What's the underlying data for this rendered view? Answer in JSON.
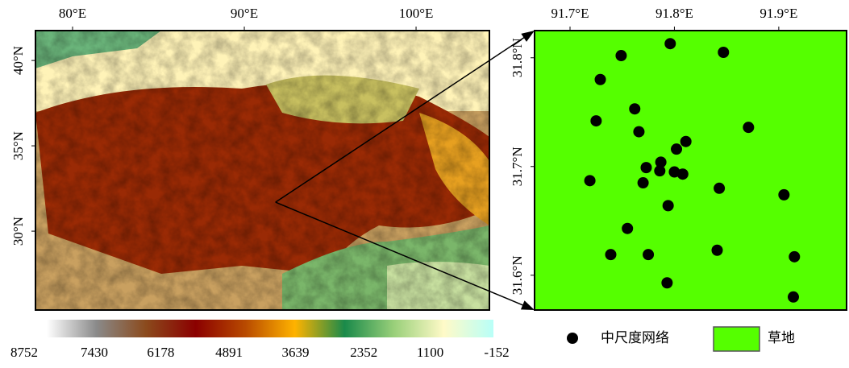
{
  "left_map": {
    "lon_range": [
      77.84,
      104.27
    ],
    "lat_range": [
      25.38,
      41.75
    ],
    "lon_ticks": [
      {
        "value": 80,
        "label": "80°E"
      },
      {
        "value": 90,
        "label": "90°E"
      },
      {
        "value": 100,
        "label": "100°E"
      }
    ],
    "lat_ticks": [
      {
        "value": 40,
        "label": "40°N"
      },
      {
        "value": 35,
        "label": "35°N"
      },
      {
        "value": 30,
        "label": "30°N"
      }
    ]
  },
  "colorbar": {
    "ticks": [
      8752,
      7430,
      6178,
      4891,
      3639,
      2352,
      1100,
      -152
    ],
    "colors": [
      "#ffffff",
      "#8a8a8a",
      "#8b4a1c",
      "#8b0000",
      "#b84a00",
      "#ffb300",
      "#1a8a4a",
      "#9ad07a",
      "#fffac8",
      "#b8fff8"
    ]
  },
  "right_map": {
    "lon_range": [
      91.666,
      91.965
    ],
    "lat_range": [
      31.568,
      31.825
    ],
    "fill": "#55ff00",
    "lon_ticks": [
      {
        "value": 91.7,
        "label": "91.7°E"
      },
      {
        "value": 91.8,
        "label": "91.8°E"
      },
      {
        "value": 91.9,
        "label": "91.9°E"
      }
    ],
    "lat_ticks": [
      {
        "value": 31.8,
        "label": "31.8°N"
      },
      {
        "value": 31.7,
        "label": "31.7°N"
      },
      {
        "value": 31.6,
        "label": "31.6°N"
      }
    ],
    "sites": [
      {
        "lon": 91.796,
        "lat": 31.813
      },
      {
        "lon": 91.749,
        "lat": 31.802
      },
      {
        "lon": 91.847,
        "lat": 31.805
      },
      {
        "lon": 91.729,
        "lat": 31.78
      },
      {
        "lon": 91.762,
        "lat": 31.753
      },
      {
        "lon": 91.725,
        "lat": 31.742
      },
      {
        "lon": 91.766,
        "lat": 31.732
      },
      {
        "lon": 91.871,
        "lat": 31.736
      },
      {
        "lon": 91.811,
        "lat": 31.723
      },
      {
        "lon": 91.802,
        "lat": 31.716
      },
      {
        "lon": 91.773,
        "lat": 31.699
      },
      {
        "lon": 91.787,
        "lat": 31.704
      },
      {
        "lon": 91.786,
        "lat": 31.696
      },
      {
        "lon": 91.8,
        "lat": 31.695
      },
      {
        "lon": 91.808,
        "lat": 31.693
      },
      {
        "lon": 91.719,
        "lat": 31.687
      },
      {
        "lon": 91.77,
        "lat": 31.685
      },
      {
        "lon": 91.843,
        "lat": 31.68
      },
      {
        "lon": 91.905,
        "lat": 31.674
      },
      {
        "lon": 91.794,
        "lat": 31.664
      },
      {
        "lon": 91.755,
        "lat": 31.643
      },
      {
        "lon": 91.739,
        "lat": 31.619
      },
      {
        "lon": 91.775,
        "lat": 31.619
      },
      {
        "lon": 91.841,
        "lat": 31.623
      },
      {
        "lon": 91.915,
        "lat": 31.617
      },
      {
        "lon": 91.793,
        "lat": 31.593
      },
      {
        "lon": 91.914,
        "lat": 31.58
      }
    ]
  },
  "legend": {
    "sites": "中尺度网络",
    "grassland": "草地"
  }
}
